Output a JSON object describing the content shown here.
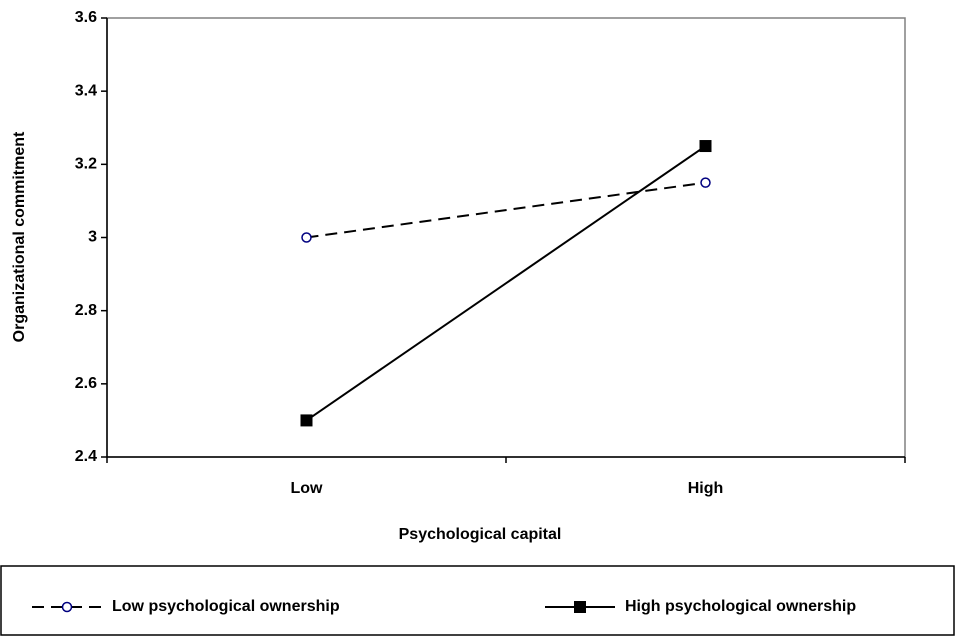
{
  "chart_data": {
    "type": "line",
    "x_label": "Psychological capital",
    "y_label": "Organizational commitment",
    "categories": [
      "Low",
      "High"
    ],
    "series": [
      {
        "name": "Low psychological ownership",
        "color": "#000000",
        "marker_color": "#000080",
        "line_style": "dashed",
        "marker": "circle",
        "values": [
          3.0,
          3.15
        ]
      },
      {
        "name": "High psychological ownership",
        "color": "#000000",
        "marker_color": "#000000",
        "line_style": "solid",
        "marker": "square",
        "values": [
          2.5,
          3.25
        ]
      }
    ],
    "ylim": [
      2.4,
      3.6
    ],
    "yticks": [
      2.4,
      2.6,
      2.8,
      3,
      3.2,
      3.4,
      3.6
    ],
    "grid": false,
    "legend": "bottom"
  }
}
